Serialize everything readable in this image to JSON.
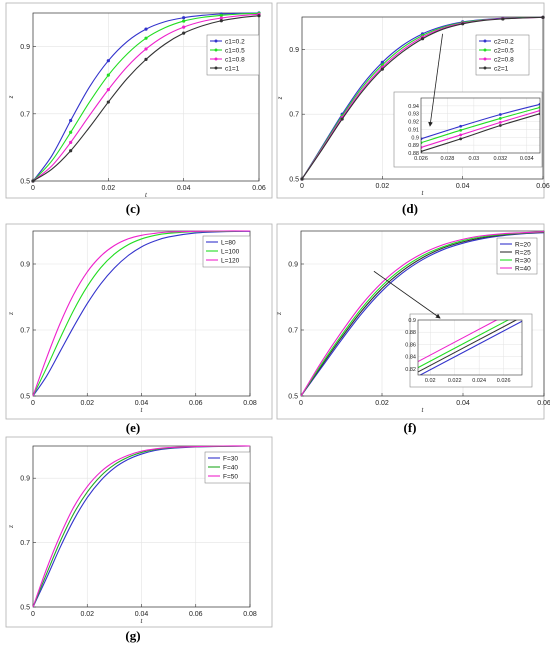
{
  "chart_data": [
    {
      "id": "c",
      "panel_label": "(c)",
      "type": "line",
      "xlabel": "t",
      "ylabel": "z",
      "xlim": [
        0,
        0.06
      ],
      "ylim": [
        0.5,
        1.0
      ],
      "xticks": [
        0,
        0.02,
        0.04,
        0.06
      ],
      "xtick_labels": [
        "0",
        "0.02",
        "0.04",
        "0.06"
      ],
      "yticks": [
        0.5,
        0.7,
        0.9
      ],
      "ytick_labels": [
        "0.5",
        "0.7",
        "0.9"
      ],
      "legend_position": "top-right",
      "grid": true,
      "series": [
        {
          "name": "c1=0.2",
          "color": "#3333cc",
          "marker": true,
          "x": [
            0,
            0.005,
            0.01,
            0.015,
            0.02,
            0.025,
            0.03,
            0.035,
            0.04,
            0.045,
            0.05,
            0.055,
            0.06
          ],
          "y": [
            0.5,
            0.575,
            0.68,
            0.78,
            0.858,
            0.915,
            0.952,
            0.974,
            0.986,
            0.993,
            0.997,
            0.999,
            1.0
          ]
        },
        {
          "name": "c1=0.5",
          "color": "#22dd22",
          "marker": true,
          "x": [
            0,
            0.005,
            0.01,
            0.015,
            0.02,
            0.025,
            0.03,
            0.035,
            0.04,
            0.045,
            0.05,
            0.055,
            0.06
          ],
          "y": [
            0.5,
            0.56,
            0.645,
            0.735,
            0.815,
            0.878,
            0.925,
            0.956,
            0.976,
            0.987,
            0.993,
            0.997,
            0.999
          ]
        },
        {
          "name": "c1=0.8",
          "color": "#ee22cc",
          "marker": true,
          "x": [
            0,
            0.005,
            0.01,
            0.015,
            0.02,
            0.025,
            0.03,
            0.035,
            0.04,
            0.045,
            0.05,
            0.055,
            0.06
          ],
          "y": [
            0.5,
            0.545,
            0.615,
            0.695,
            0.772,
            0.84,
            0.893,
            0.932,
            0.958,
            0.975,
            0.985,
            0.992,
            0.996
          ]
        },
        {
          "name": "c1=1",
          "color": "#333333",
          "marker": true,
          "x": [
            0,
            0.005,
            0.01,
            0.015,
            0.02,
            0.025,
            0.03,
            0.035,
            0.04,
            0.045,
            0.05,
            0.055,
            0.06
          ],
          "y": [
            0.5,
            0.535,
            0.59,
            0.66,
            0.735,
            0.805,
            0.862,
            0.907,
            0.94,
            0.962,
            0.977,
            0.986,
            0.992
          ]
        }
      ]
    },
    {
      "id": "d",
      "panel_label": "(d)",
      "type": "line",
      "xlabel": "t",
      "ylabel": "z",
      "xlim": [
        0,
        0.06
      ],
      "ylim": [
        0.5,
        1.0
      ],
      "xticks": [
        0,
        0.02,
        0.04,
        0.06
      ],
      "xtick_labels": [
        "0",
        "0.02",
        "0.04",
        "0.06"
      ],
      "yticks": [
        0.5,
        0.7,
        0.9
      ],
      "ytick_labels": [
        "0.5",
        "0.7",
        "0.9"
      ],
      "legend_position": "top-right",
      "grid": true,
      "series": [
        {
          "name": "c2=0.2",
          "color": "#3333cc",
          "marker": true,
          "x": [
            0,
            0.005,
            0.01,
            0.015,
            0.02,
            0.025,
            0.03,
            0.035,
            0.04,
            0.045,
            0.05,
            0.055,
            0.06
          ],
          "y": [
            0.5,
            0.6,
            0.7,
            0.79,
            0.86,
            0.912,
            0.948,
            0.971,
            0.985,
            0.992,
            0.996,
            0.998,
            0.999
          ]
        },
        {
          "name": "c2=0.5",
          "color": "#22dd22",
          "marker": true,
          "x": [
            0,
            0.005,
            0.01,
            0.015,
            0.02,
            0.025,
            0.03,
            0.035,
            0.04,
            0.045,
            0.05,
            0.055,
            0.06
          ],
          "y": [
            0.5,
            0.597,
            0.695,
            0.783,
            0.852,
            0.905,
            0.943,
            0.968,
            0.983,
            0.991,
            0.995,
            0.998,
            0.999
          ]
        },
        {
          "name": "c2=0.8",
          "color": "#ee22cc",
          "marker": true,
          "x": [
            0,
            0.005,
            0.01,
            0.015,
            0.02,
            0.025,
            0.03,
            0.035,
            0.04,
            0.045,
            0.05,
            0.055,
            0.06
          ],
          "y": [
            0.5,
            0.594,
            0.69,
            0.776,
            0.845,
            0.898,
            0.938,
            0.965,
            0.981,
            0.99,
            0.995,
            0.997,
            0.999
          ]
        },
        {
          "name": "c2=1",
          "color": "#333333",
          "marker": true,
          "x": [
            0,
            0.005,
            0.01,
            0.015,
            0.02,
            0.025,
            0.03,
            0.035,
            0.04,
            0.045,
            0.05,
            0.055,
            0.06
          ],
          "y": [
            0.5,
            0.591,
            0.685,
            0.77,
            0.839,
            0.892,
            0.933,
            0.962,
            0.979,
            0.989,
            0.994,
            0.997,
            0.999
          ]
        }
      ],
      "inset": {
        "xlim": [
          0.026,
          0.035
        ],
        "ylim": [
          0.88,
          0.95
        ],
        "xticks": [
          0.026,
          0.028,
          0.03,
          0.032,
          0.034
        ],
        "xtick_labels": [
          "0.026",
          "0.028",
          "0.03",
          "0.032",
          "0.034"
        ],
        "yticks": [
          0.88,
          0.89,
          0.9,
          0.91,
          0.92,
          0.93,
          0.94
        ],
        "ytick_labels": [
          "0.88",
          "0.89",
          "0.9",
          "0.91",
          "0.92",
          "0.93",
          "0.94"
        ],
        "series": [
          {
            "color": "#3333cc",
            "x": [
              0.026,
              0.029,
              0.032,
              0.035
            ],
            "y": [
              0.898,
              0.914,
              0.929,
              0.942
            ]
          },
          {
            "color": "#22dd22",
            "x": [
              0.026,
              0.029,
              0.032,
              0.035
            ],
            "y": [
              0.893,
              0.909,
              0.924,
              0.938
            ]
          },
          {
            "color": "#ee22cc",
            "x": [
              0.026,
              0.029,
              0.032,
              0.035
            ],
            "y": [
              0.887,
              0.903,
              0.919,
              0.934
            ]
          },
          {
            "color": "#333333",
            "x": [
              0.026,
              0.029,
              0.032,
              0.035
            ],
            "y": [
              0.882,
              0.898,
              0.915,
              0.93
            ]
          }
        ]
      }
    },
    {
      "id": "e",
      "panel_label": "(e)",
      "type": "line",
      "xlabel": "t",
      "ylabel": "z",
      "xlim": [
        0,
        0.08
      ],
      "ylim": [
        0.5,
        1.0
      ],
      "xticks": [
        0,
        0.02,
        0.04,
        0.06,
        0.08
      ],
      "xtick_labels": [
        "0",
        "0.02",
        "0.04",
        "0.06",
        "0.08"
      ],
      "yticks": [
        0.5,
        0.7,
        0.9
      ],
      "ytick_labels": [
        "0.5",
        "0.7",
        "0.9"
      ],
      "legend_position": "top-right",
      "grid": true,
      "series": [
        {
          "name": "L=80",
          "color": "#3333cc",
          "marker": false,
          "x": [
            0,
            0.005,
            0.01,
            0.015,
            0.02,
            0.025,
            0.03,
            0.035,
            0.04,
            0.045,
            0.05,
            0.06,
            0.07,
            0.08
          ],
          "y": [
            0.5,
            0.56,
            0.635,
            0.71,
            0.78,
            0.84,
            0.888,
            0.925,
            0.952,
            0.97,
            0.982,
            0.994,
            0.998,
            0.999
          ]
        },
        {
          "name": "L=100",
          "color": "#22dd22",
          "marker": false,
          "x": [
            0,
            0.005,
            0.01,
            0.015,
            0.02,
            0.025,
            0.03,
            0.035,
            0.04,
            0.045,
            0.05,
            0.06,
            0.07,
            0.08
          ],
          "y": [
            0.5,
            0.585,
            0.675,
            0.76,
            0.832,
            0.889,
            0.93,
            0.958,
            0.976,
            0.987,
            0.993,
            0.998,
            0.999,
            1.0
          ]
        },
        {
          "name": "L=120",
          "color": "#ee22cc",
          "marker": false,
          "x": [
            0,
            0.005,
            0.01,
            0.015,
            0.02,
            0.025,
            0.03,
            0.035,
            0.04,
            0.045,
            0.05,
            0.06,
            0.07,
            0.08
          ],
          "y": [
            0.5,
            0.615,
            0.72,
            0.808,
            0.876,
            0.924,
            0.956,
            0.976,
            0.987,
            0.993,
            0.997,
            0.999,
            1.0,
            1.0
          ]
        }
      ]
    },
    {
      "id": "f",
      "panel_label": "(f)",
      "type": "line",
      "xlabel": "t",
      "ylabel": "z",
      "xlim": [
        0,
        0.06
      ],
      "ylim": [
        0.5,
        1.0
      ],
      "xticks": [
        0,
        0.02,
        0.04,
        0.06
      ],
      "xtick_labels": [
        "0",
        "0.02",
        "0.04",
        "0.06"
      ],
      "yticks": [
        0.5,
        0.7,
        0.9
      ],
      "ytick_labels": [
        "0.5",
        "0.7",
        "0.9"
      ],
      "legend_position": "top-right",
      "grid": true,
      "series": [
        {
          "name": "R=20",
          "color": "#3333cc",
          "marker": false,
          "x": [
            0,
            0.005,
            0.01,
            0.015,
            0.02,
            0.025,
            0.03,
            0.035,
            0.04,
            0.045,
            0.05,
            0.055,
            0.06
          ],
          "y": [
            0.5,
            0.585,
            0.67,
            0.75,
            0.818,
            0.872,
            0.913,
            0.943,
            0.963,
            0.977,
            0.986,
            0.992,
            0.995
          ]
        },
        {
          "name": "R=25",
          "color": "#333333",
          "marker": false,
          "x": [
            0,
            0.005,
            0.01,
            0.015,
            0.02,
            0.025,
            0.03,
            0.035,
            0.04,
            0.045,
            0.05,
            0.055,
            0.06
          ],
          "y": [
            0.5,
            0.59,
            0.677,
            0.758,
            0.826,
            0.879,
            0.919,
            0.948,
            0.967,
            0.98,
            0.988,
            0.993,
            0.996
          ]
        },
        {
          "name": "R=30",
          "color": "#22dd22",
          "marker": false,
          "x": [
            0,
            0.005,
            0.01,
            0.015,
            0.02,
            0.025,
            0.03,
            0.035,
            0.04,
            0.045,
            0.05,
            0.055,
            0.06
          ],
          "y": [
            0.5,
            0.595,
            0.684,
            0.766,
            0.834,
            0.886,
            0.925,
            0.952,
            0.971,
            0.983,
            0.99,
            0.994,
            0.997
          ]
        },
        {
          "name": "R=40",
          "color": "#ee22cc",
          "marker": false,
          "x": [
            0,
            0.005,
            0.01,
            0.015,
            0.02,
            0.025,
            0.03,
            0.035,
            0.04,
            0.045,
            0.05,
            0.055,
            0.06
          ],
          "y": [
            0.5,
            0.602,
            0.694,
            0.777,
            0.844,
            0.895,
            0.932,
            0.958,
            0.975,
            0.986,
            0.992,
            0.995,
            0.998
          ]
        }
      ],
      "inset": {
        "xlim": [
          0.019,
          0.0275
        ],
        "ylim": [
          0.81,
          0.9
        ],
        "xticks": [
          0.02,
          0.022,
          0.024,
          0.026
        ],
        "xtick_labels": [
          "0.02",
          "0.022",
          "0.024",
          "0.026"
        ],
        "yticks": [
          0.82,
          0.84,
          0.86,
          0.88,
          0.9
        ],
        "ytick_labels": [
          "0.82",
          "0.84",
          "0.86",
          "0.88",
          "0.9"
        ],
        "series": [
          {
            "color": "#3333cc",
            "x": [
              0.019,
              0.0275
            ],
            "y": [
              0.808,
              0.898
            ]
          },
          {
            "color": "#333333",
            "x": [
              0.019,
              0.0275
            ],
            "y": [
              0.815,
              0.905
            ]
          },
          {
            "color": "#22dd22",
            "x": [
              0.019,
              0.0275
            ],
            "y": [
              0.822,
              0.912
            ]
          },
          {
            "color": "#ee22cc",
            "x": [
              0.019,
              0.0275
            ],
            "y": [
              0.832,
              0.922
            ]
          }
        ]
      }
    },
    {
      "id": "g",
      "panel_label": "(g)",
      "type": "line",
      "xlabel": "t",
      "ylabel": "z",
      "xlim": [
        0,
        0.08
      ],
      "ylim": [
        0.5,
        1.0
      ],
      "xticks": [
        0,
        0.02,
        0.04,
        0.06,
        0.08
      ],
      "xtick_labels": [
        "0",
        "0.02",
        "0.04",
        "0.06",
        "0.08"
      ],
      "yticks": [
        0.5,
        0.7,
        0.9
      ],
      "ytick_labels": [
        "0.5",
        "0.7",
        "0.9"
      ],
      "legend_position": "top-right",
      "grid": true,
      "series": [
        {
          "name": "F=30",
          "color": "#3333cc",
          "marker": false,
          "x": [
            0,
            0.005,
            0.01,
            0.015,
            0.02,
            0.025,
            0.03,
            0.035,
            0.04,
            0.045,
            0.05,
            0.06,
            0.07,
            0.08
          ],
          "y": [
            0.5,
            0.59,
            0.685,
            0.77,
            0.84,
            0.893,
            0.932,
            0.958,
            0.975,
            0.986,
            0.992,
            0.997,
            0.999,
            1.0
          ]
        },
        {
          "name": "F=40",
          "color": "#22aa22",
          "marker": false,
          "x": [
            0,
            0.005,
            0.01,
            0.015,
            0.02,
            0.025,
            0.03,
            0.035,
            0.04,
            0.045,
            0.05,
            0.06,
            0.07,
            0.08
          ],
          "y": [
            0.5,
            0.603,
            0.703,
            0.79,
            0.857,
            0.907,
            0.942,
            0.965,
            0.98,
            0.989,
            0.994,
            0.998,
            0.999,
            1.0
          ]
        },
        {
          "name": "F=50",
          "color": "#ee22cc",
          "marker": false,
          "x": [
            0,
            0.005,
            0.01,
            0.015,
            0.02,
            0.025,
            0.03,
            0.035,
            0.04,
            0.045,
            0.05,
            0.06,
            0.07,
            0.08
          ],
          "y": [
            0.5,
            0.618,
            0.722,
            0.81,
            0.874,
            0.92,
            0.951,
            0.971,
            0.984,
            0.991,
            0.995,
            0.998,
            1.0,
            1.0
          ]
        }
      ]
    }
  ]
}
